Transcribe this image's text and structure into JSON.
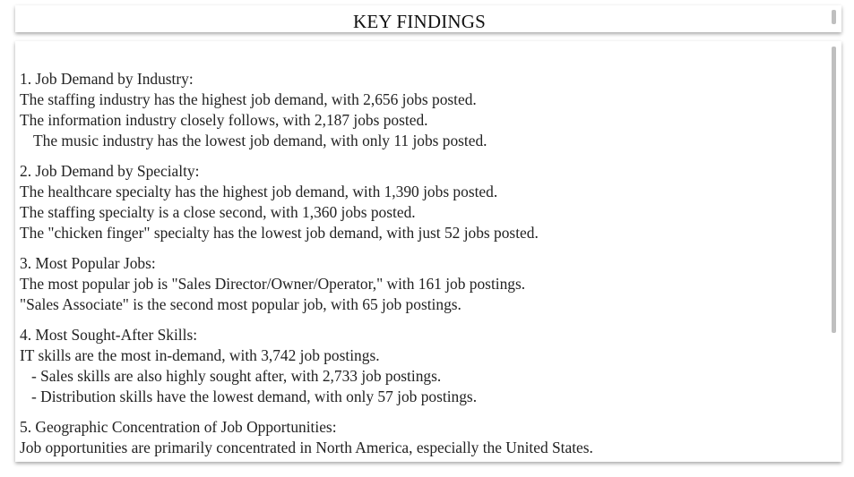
{
  "header": {
    "title": "KEY FINDINGS"
  },
  "sections": [
    {
      "heading": "1. Job Demand by Industry:",
      "lines": [
        "The staffing industry has the highest job demand, with 2,656 jobs posted.",
        "The information industry closely follows, with 2,187 jobs posted.",
        "The music industry has the lowest job demand, with only 11 jobs posted."
      ]
    },
    {
      "heading": "2. Job Demand by Specialty:",
      "lines": [
        "The healthcare specialty has the highest job demand, with 1,390 jobs posted.",
        "The staffing specialty is a close second, with 1,360 jobs posted.",
        "The \"chicken finger\" specialty has the lowest job demand, with just 52 jobs posted."
      ]
    },
    {
      "heading": "3. Most Popular Jobs:",
      "lines": [
        "The most popular job is \"Sales Director/Owner/Operator,\" with 161 job postings.",
        "\"Sales Associate\" is the second most popular job, with 65 job postings."
      ]
    },
    {
      "heading": "4. Most Sought-After Skills:",
      "lines": [
        "IT skills are the most in-demand, with 3,742 job postings.",
        "- Sales skills are also highly sought after, with 2,733 job postings.",
        "- Distribution skills have the lowest demand, with only 57 job postings."
      ]
    },
    {
      "heading": "5. Geographic Concentration of Job Opportunities:",
      "lines": [
        "Job opportunities are primarily concentrated in North America, especially the United States."
      ]
    }
  ]
}
